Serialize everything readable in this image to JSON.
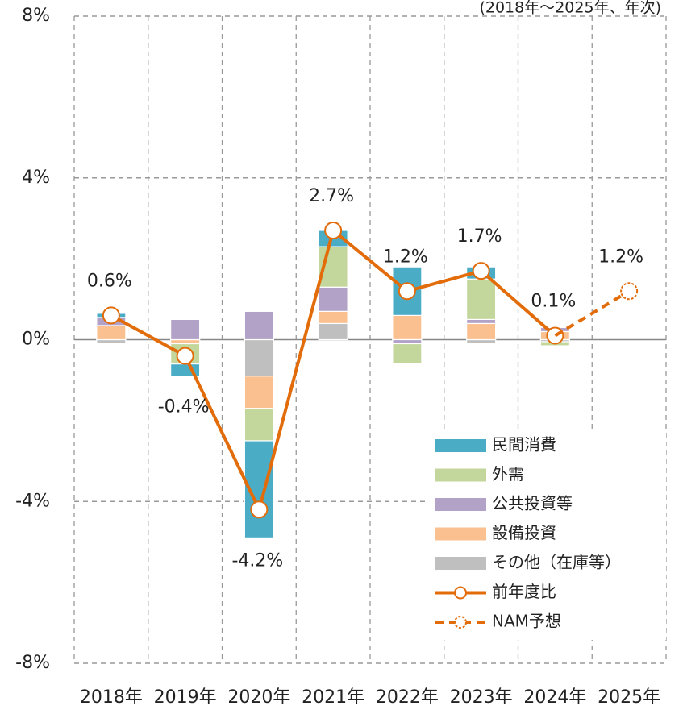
{
  "chart_data": {
    "type": "stacked_bar_line",
    "subtitle": "(2018年～2025年、年次)",
    "categories": [
      "2018年",
      "2019年",
      "2020年",
      "2021年",
      "2022年",
      "2023年",
      "2024年",
      "2025年"
    ],
    "ylim": [
      -8,
      8
    ],
    "yticks": [
      {
        "value": 8,
        "label": "8%"
      },
      {
        "value": 4,
        "label": "4%"
      },
      {
        "value": 0,
        "label": "0%"
      },
      {
        "value": -4,
        "label": "-4%"
      },
      {
        "value": -8,
        "label": "-8%"
      }
    ],
    "grid": true,
    "legend": "bottom-right",
    "series": [
      {
        "name": "民間消費",
        "color": "#4bacc6",
        "type": "bar",
        "values": [
          0.1,
          -0.3,
          -2.4,
          0.4,
          1.2,
          0.3,
          0,
          null
        ]
      },
      {
        "name": "外需",
        "color": "#c3d69b",
        "type": "bar",
        "values": [
          0,
          -0.5,
          -0.8,
          1.0,
          -0.5,
          1.0,
          -0.1,
          null
        ]
      },
      {
        "name": "公共投資等",
        "color": "#b3a2c7",
        "type": "bar",
        "values": [
          0.2,
          0.5,
          0.7,
          0.6,
          -0.1,
          0.1,
          0.1,
          null
        ]
      },
      {
        "name": "設備投資",
        "color": "#fac090",
        "type": "bar",
        "values": [
          0.35,
          -0.1,
          -0.8,
          0.3,
          0.6,
          0.4,
          0.2,
          null
        ]
      },
      {
        "name": "その他（在庫等）",
        "color": "#bfbfbf",
        "type": "bar",
        "values": [
          -0.1,
          0,
          -0.9,
          0.4,
          0,
          -0.1,
          -0.05,
          null
        ]
      },
      {
        "name": "前年度比",
        "color": "#e36c0a",
        "type": "line",
        "dashed": false,
        "values": [
          0.6,
          -0.4,
          -4.2,
          2.7,
          1.2,
          1.7,
          0.1,
          null
        ],
        "value_labels": [
          "0.6%",
          "-0.4%",
          "-4.2%",
          "2.7%",
          "1.2%",
          "1.7%",
          "0.1%",
          null
        ]
      },
      {
        "name": "NAM予想",
        "color": "#e36c0a",
        "type": "line",
        "dashed": true,
        "values": [
          null,
          null,
          null,
          null,
          null,
          null,
          0.1,
          1.2
        ],
        "value_labels": [
          null,
          null,
          null,
          null,
          null,
          null,
          null,
          "1.2%"
        ]
      }
    ]
  }
}
